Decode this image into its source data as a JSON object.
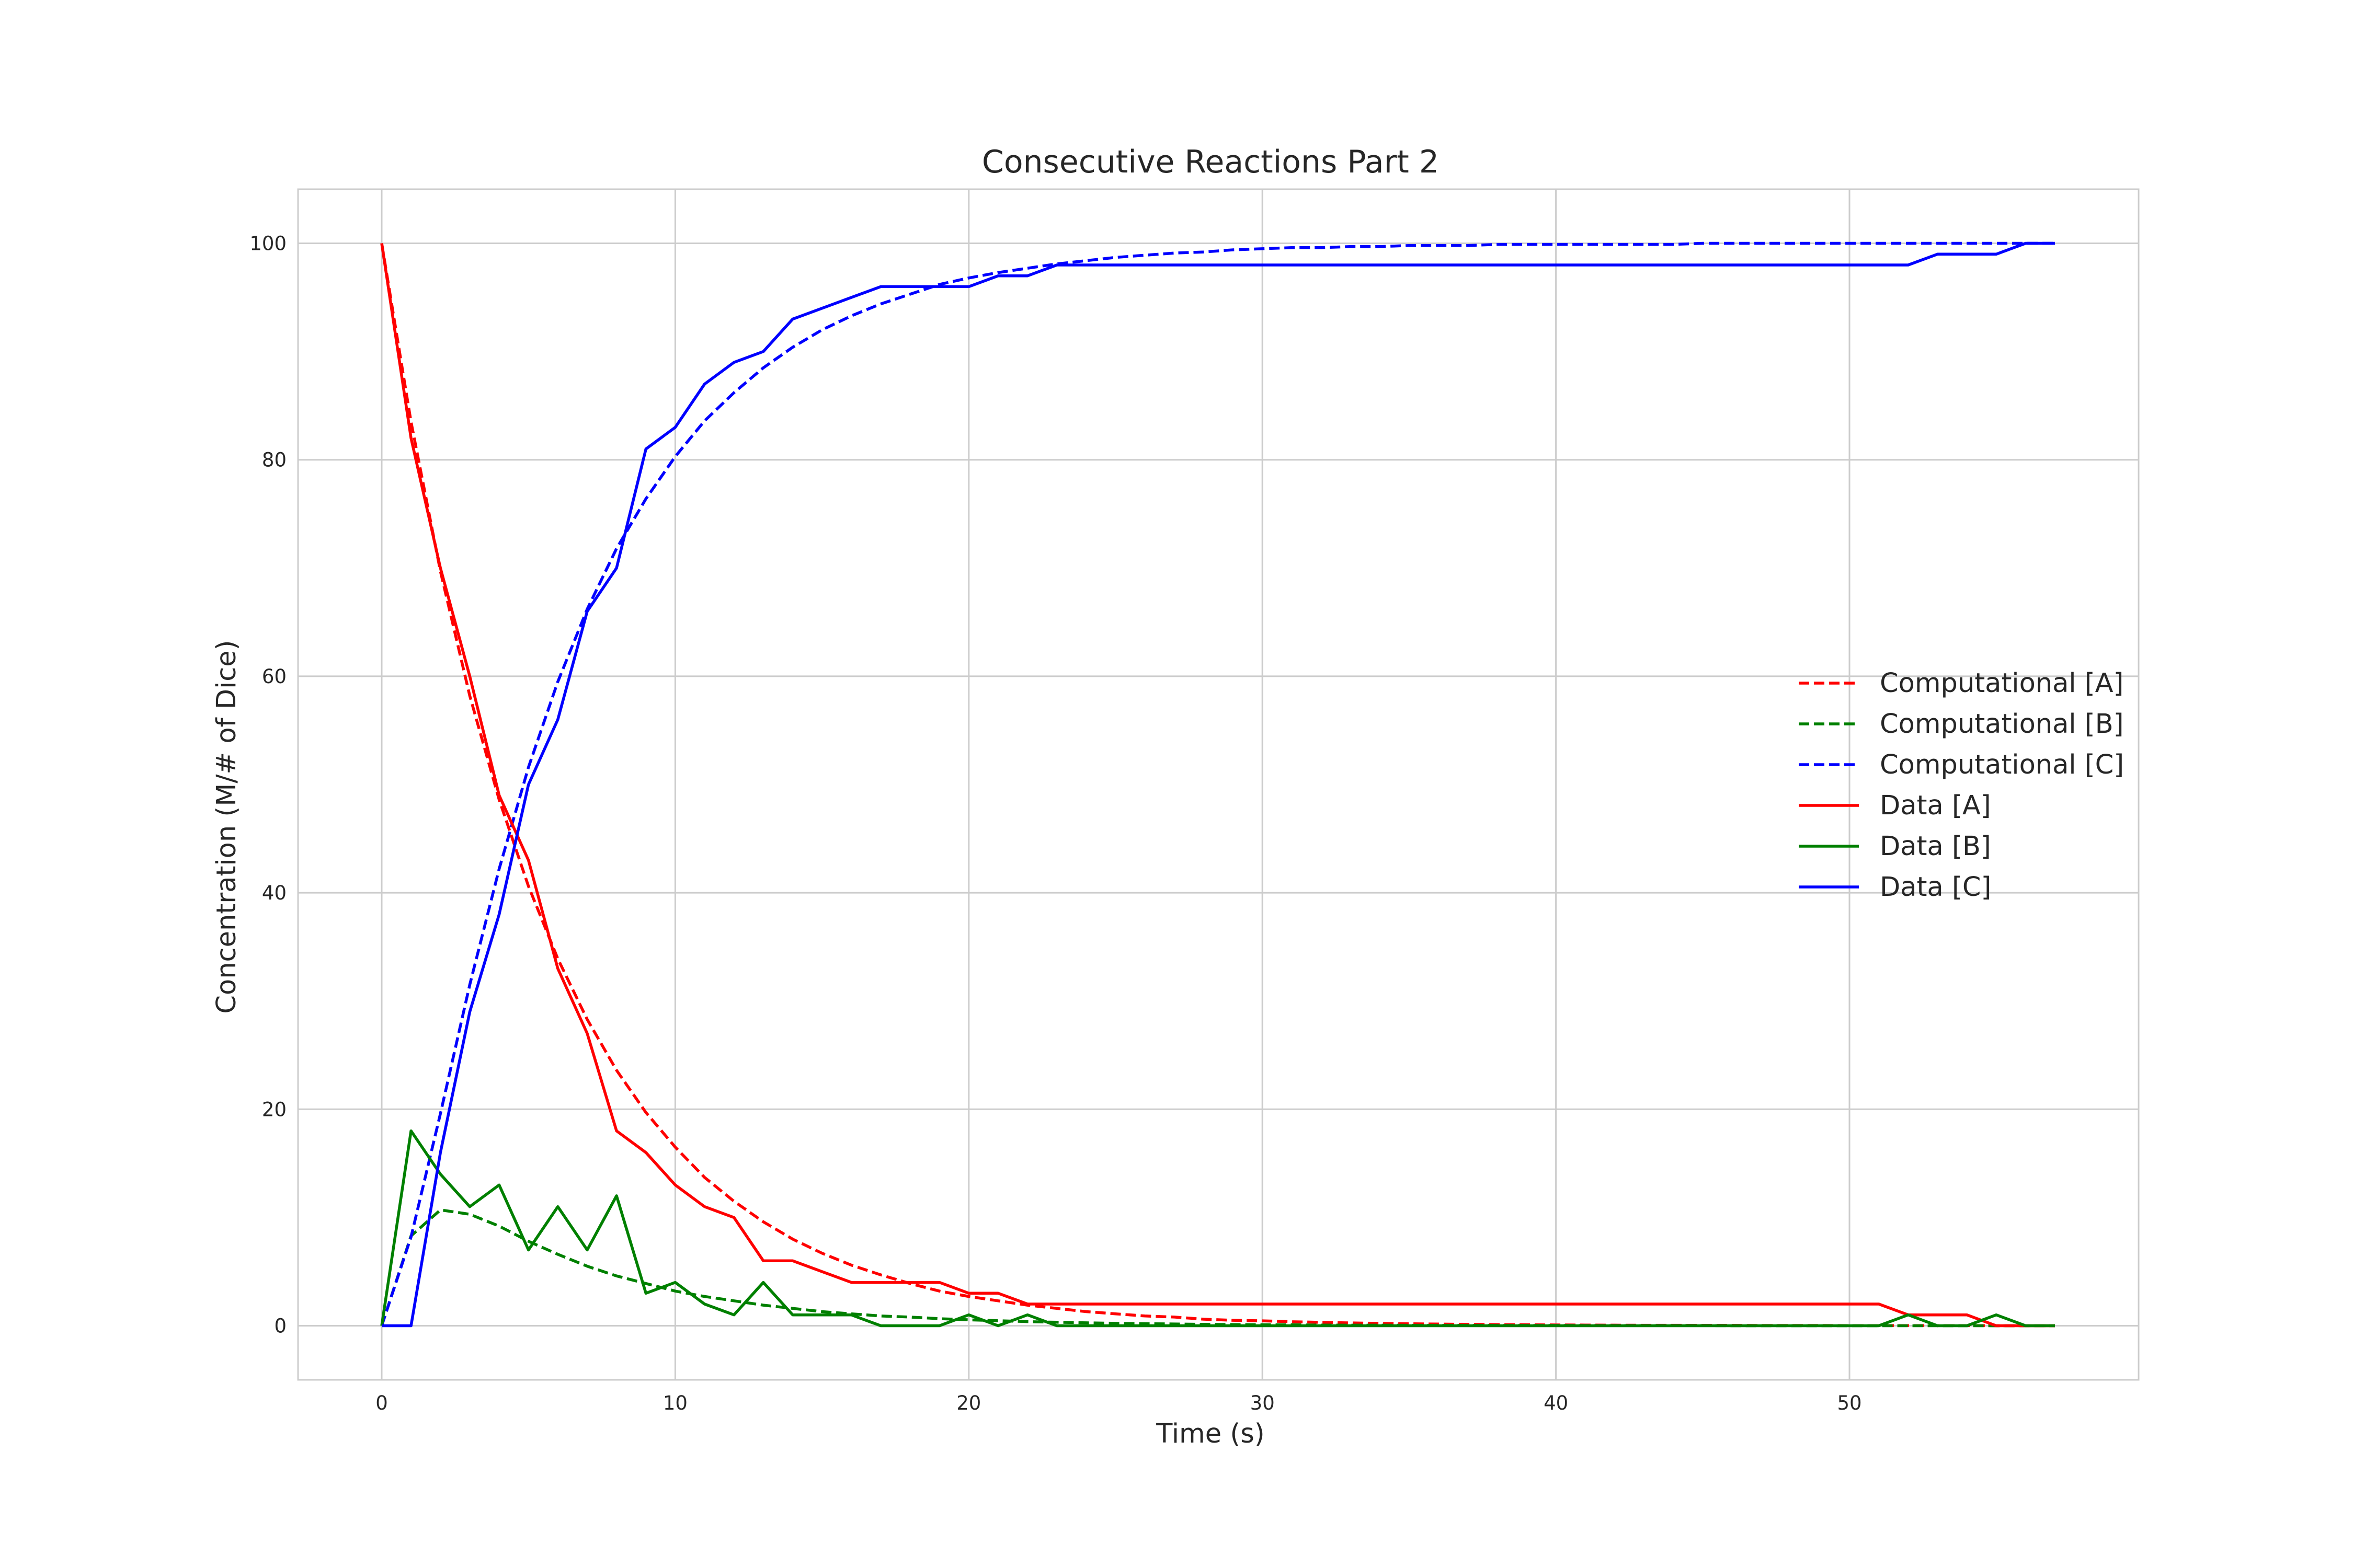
{
  "chart_data": {
    "type": "line",
    "title": "Consecutive Reactions Part 2",
    "xlabel": "Time (s)",
    "ylabel": "Concentration (M/# of Dice)",
    "xlim": [
      -2.85,
      59.85
    ],
    "ylim": [
      -5,
      105
    ],
    "xticks": [
      0,
      10,
      20,
      30,
      40,
      50
    ],
    "yticks": [
      0,
      20,
      40,
      60,
      80,
      100
    ],
    "grid": true,
    "legend_position": "center-right",
    "series": [
      {
        "name": "Computational [A]",
        "color": "#ff0000",
        "style": "dashed",
        "x": [
          0,
          1,
          2,
          3,
          4,
          5,
          6,
          7,
          8,
          9,
          10,
          11,
          12,
          13,
          14,
          15,
          16,
          17,
          18,
          19,
          20,
          21,
          22,
          23,
          24,
          25,
          26,
          27,
          28,
          29,
          30,
          31,
          32,
          33,
          34,
          35,
          36,
          37,
          38,
          39,
          40,
          41,
          42,
          43,
          44,
          45,
          46,
          47,
          48,
          49,
          50,
          51,
          52,
          53,
          54,
          55,
          56,
          57
        ],
        "y": [
          100,
          83.5,
          69.7,
          58.2,
          48.6,
          40.6,
          33.9,
          28.3,
          23.6,
          19.7,
          16.5,
          13.7,
          11.5,
          9.6,
          8.0,
          6.7,
          5.6,
          4.7,
          3.9,
          3.2,
          2.7,
          2.3,
          1.9,
          1.6,
          1.3,
          1.1,
          0.9,
          0.8,
          0.6,
          0.5,
          0.45,
          0.37,
          0.31,
          0.26,
          0.22,
          0.18,
          0.15,
          0.13,
          0.1,
          0.09,
          0.07,
          0.06,
          0.05,
          0.04,
          0.04,
          0.03,
          0.03,
          0.02,
          0.02,
          0.02,
          0.01,
          0.01,
          0.01,
          0.01,
          0.01,
          0,
          0,
          0
        ]
      },
      {
        "name": "Computational [B]",
        "color": "#008000",
        "style": "dashed",
        "x": [
          0,
          1,
          2,
          3,
          4,
          5,
          6,
          7,
          8,
          9,
          10,
          11,
          12,
          13,
          14,
          15,
          16,
          17,
          18,
          19,
          20,
          21,
          22,
          23,
          24,
          25,
          26,
          27,
          28,
          29,
          30,
          31,
          32,
          33,
          34,
          35,
          36,
          37,
          38,
          39,
          40,
          41,
          42,
          43,
          44,
          45,
          46,
          47,
          48,
          49,
          50,
          51,
          52,
          53,
          54,
          55,
          56,
          57
        ],
        "y": [
          0,
          8.3,
          10.7,
          10.3,
          9.2,
          7.8,
          6.6,
          5.5,
          4.6,
          3.9,
          3.2,
          2.7,
          2.3,
          1.9,
          1.6,
          1.3,
          1.1,
          0.9,
          0.8,
          0.65,
          0.55,
          0.46,
          0.38,
          0.32,
          0.27,
          0.22,
          0.19,
          0.16,
          0.13,
          0.11,
          0.09,
          0.08,
          0.06,
          0.05,
          0.05,
          0.04,
          0.03,
          0.03,
          0.02,
          0.02,
          0.02,
          0.01,
          0.01,
          0.01,
          0.01,
          0.01,
          0,
          0,
          0,
          0,
          0,
          0,
          0,
          0,
          0,
          0,
          0,
          0
        ]
      },
      {
        "name": "Computational [C]",
        "color": "#0000ff",
        "style": "dashed",
        "x": [
          0,
          1,
          2,
          3,
          4,
          5,
          6,
          7,
          8,
          9,
          10,
          11,
          12,
          13,
          14,
          15,
          16,
          17,
          18,
          19,
          20,
          21,
          22,
          23,
          24,
          25,
          26,
          27,
          28,
          29,
          30,
          31,
          32,
          33,
          34,
          35,
          36,
          37,
          38,
          39,
          40,
          41,
          42,
          43,
          44,
          45,
          46,
          47,
          48,
          49,
          50,
          51,
          52,
          53,
          54,
          55,
          56,
          57
        ],
        "y": [
          0,
          8.2,
          19.6,
          31.5,
          42.2,
          51.6,
          59.5,
          66.2,
          71.8,
          76.4,
          80.3,
          83.6,
          86.2,
          88.5,
          90.4,
          92.0,
          93.3,
          94.4,
          95.3,
          96.2,
          96.8,
          97.3,
          97.7,
          98.1,
          98.4,
          98.7,
          98.9,
          99.1,
          99.2,
          99.4,
          99.5,
          99.6,
          99.6,
          99.7,
          99.7,
          99.8,
          99.8,
          99.8,
          99.9,
          99.9,
          99.9,
          99.9,
          99.9,
          99.9,
          99.9,
          100,
          100,
          100,
          100,
          100,
          100,
          100,
          100,
          100,
          100,
          100,
          100,
          100
        ]
      },
      {
        "name": "Data [A]",
        "color": "#ff0000",
        "style": "solid",
        "x": [
          0,
          1,
          2,
          3,
          4,
          5,
          6,
          7,
          8,
          9,
          10,
          11,
          12,
          13,
          14,
          15,
          16,
          17,
          18,
          19,
          20,
          21,
          22,
          23,
          24,
          25,
          26,
          27,
          28,
          29,
          30,
          31,
          32,
          33,
          34,
          35,
          36,
          37,
          38,
          39,
          40,
          41,
          42,
          43,
          44,
          45,
          46,
          47,
          48,
          49,
          50,
          51,
          52,
          53,
          54,
          55,
          56,
          57
        ],
        "y": [
          100,
          82,
          70,
          60,
          49,
          43,
          33,
          27,
          18,
          16,
          13,
          11,
          10,
          6,
          6,
          5,
          4,
          4,
          4,
          4,
          3,
          3,
          2,
          2,
          2,
          2,
          2,
          2,
          2,
          2,
          2,
          2,
          2,
          2,
          2,
          2,
          2,
          2,
          2,
          2,
          2,
          2,
          2,
          2,
          2,
          2,
          2,
          2,
          2,
          2,
          2,
          2,
          1,
          1,
          1,
          0,
          0,
          0
        ]
      },
      {
        "name": "Data [B]",
        "color": "#008000",
        "style": "solid",
        "x": [
          0,
          1,
          2,
          3,
          4,
          5,
          6,
          7,
          8,
          9,
          10,
          11,
          12,
          13,
          14,
          15,
          16,
          17,
          18,
          19,
          20,
          21,
          22,
          23,
          24,
          25,
          26,
          27,
          28,
          29,
          30,
          31,
          32,
          33,
          34,
          35,
          36,
          37,
          38,
          39,
          40,
          41,
          42,
          43,
          44,
          45,
          46,
          47,
          48,
          49,
          50,
          51,
          52,
          53,
          54,
          55,
          56,
          57
        ],
        "y": [
          0,
          18,
          14,
          11,
          13,
          7,
          11,
          7,
          12,
          3,
          4,
          2,
          1,
          4,
          1,
          1,
          1,
          0,
          0,
          0,
          1,
          0,
          1,
          0,
          0,
          0,
          0,
          0,
          0,
          0,
          0,
          0,
          0,
          0,
          0,
          0,
          0,
          0,
          0,
          0,
          0,
          0,
          0,
          0,
          0,
          0,
          0,
          0,
          0,
          0,
          0,
          0,
          1,
          0,
          0,
          1,
          0,
          0
        ]
      },
      {
        "name": "Data [C]",
        "color": "#0000ff",
        "style": "solid",
        "x": [
          0,
          1,
          2,
          3,
          4,
          5,
          6,
          7,
          8,
          9,
          10,
          11,
          12,
          13,
          14,
          15,
          16,
          17,
          18,
          19,
          20,
          21,
          22,
          23,
          24,
          25,
          26,
          27,
          28,
          29,
          30,
          31,
          32,
          33,
          34,
          35,
          36,
          37,
          38,
          39,
          40,
          41,
          42,
          43,
          44,
          45,
          46,
          47,
          48,
          49,
          50,
          51,
          52,
          53,
          54,
          55,
          56,
          57
        ],
        "y": [
          0,
          0,
          16,
          29,
          38,
          50,
          56,
          66,
          70,
          81,
          83,
          87,
          89,
          90,
          93,
          94,
          95,
          96,
          96,
          96,
          96,
          97,
          97,
          98,
          98,
          98,
          98,
          98,
          98,
          98,
          98,
          98,
          98,
          98,
          98,
          98,
          98,
          98,
          98,
          98,
          98,
          98,
          98,
          98,
          98,
          98,
          98,
          98,
          98,
          98,
          98,
          98,
          98,
          99,
          99,
          99,
          100,
          100
        ]
      }
    ]
  }
}
